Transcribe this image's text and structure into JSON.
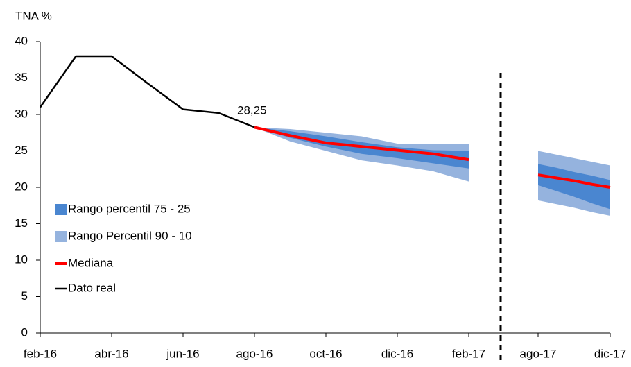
{
  "chart_data": {
    "type": "line",
    "y_label": "TNA %",
    "annotation": "28,25",
    "categories": [
      "feb-16",
      null,
      "abr-16",
      null,
      "jun-16",
      null,
      "ago-16",
      null,
      "oct-16",
      null,
      "dic-16",
      null,
      "feb-17",
      null,
      "ago-17",
      null,
      null,
      null,
      "dic-17"
    ],
    "ylim": [
      0,
      40
    ],
    "yticks": [
      0,
      5,
      10,
      15,
      20,
      25,
      30,
      35,
      40
    ],
    "series": [
      {
        "name": "Rango percentil 75 - 25",
        "color": "#4a86d0",
        "kind": "band",
        "high": [
          null,
          null,
          null,
          null,
          null,
          null,
          28.25,
          27.7,
          27,
          26.2,
          25.5,
          25.1,
          25,
          null,
          23.2,
          22.7,
          22.1,
          21.6,
          21
        ],
        "low": [
          null,
          null,
          null,
          null,
          null,
          null,
          28.25,
          26.8,
          25.6,
          24.6,
          24,
          23.3,
          22.6,
          null,
          20.3,
          19.5,
          18.7,
          17.8,
          17
        ]
      },
      {
        "name": "Rango Percentil 90 - 10",
        "color": "#95b3de",
        "kind": "band",
        "high": [
          null,
          null,
          null,
          null,
          null,
          null,
          28.25,
          28,
          27.5,
          27,
          26,
          26,
          26,
          null,
          25,
          24.5,
          24,
          23.5,
          23
        ],
        "low": [
          null,
          null,
          null,
          null,
          null,
          null,
          28.25,
          26.3,
          25,
          23.7,
          23,
          22.2,
          20.8,
          null,
          18.2,
          17.7,
          17.2,
          16.6,
          16.1
        ]
      },
      {
        "name": "Mediana",
        "color": "#ff0000",
        "kind": "line",
        "values": [
          null,
          null,
          null,
          null,
          null,
          null,
          28.25,
          27.1,
          26.1,
          25.6,
          25.1,
          24.6,
          23.8,
          null,
          21.7,
          21.3,
          20.9,
          20.4,
          20
        ]
      },
      {
        "name": "Dato real",
        "color": "#000000",
        "kind": "line",
        "values": [
          31,
          38,
          38,
          34.3,
          30.7,
          30.2,
          28.25,
          null,
          null,
          null,
          null,
          null,
          null,
          null,
          null,
          null,
          null,
          null,
          null
        ]
      }
    ]
  }
}
